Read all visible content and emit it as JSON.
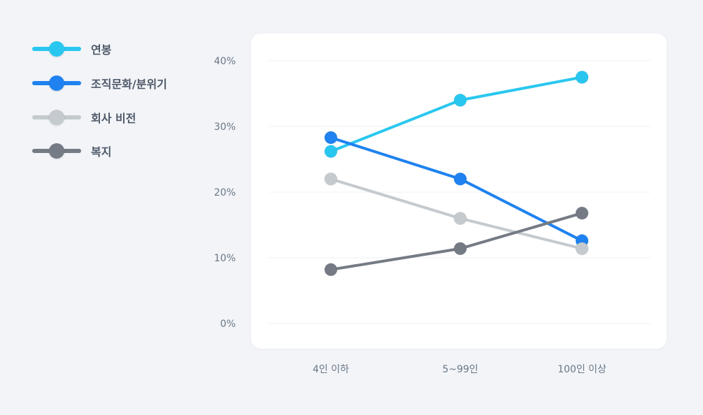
{
  "chart_data": {
    "type": "line",
    "categories": [
      "4인 이하",
      "5~99인",
      "100인 이상"
    ],
    "series": [
      {
        "name": "연봉",
        "color": "#29c7ef",
        "values": [
          26.2,
          34.0,
          37.5
        ]
      },
      {
        "name": "조직문화/분위기",
        "color": "#1f82f0",
        "values": [
          28.3,
          22.0,
          12.6
        ]
      },
      {
        "name": "회사 비전",
        "color": "#c5cacf",
        "values": [
          22.0,
          16.0,
          11.4
        ]
      },
      {
        "name": "복지",
        "color": "#747b84",
        "values": [
          8.2,
          11.4,
          16.8
        ]
      }
    ],
    "y_ticks": [
      "0%",
      "10%",
      "20%",
      "30%",
      "40%"
    ],
    "ylim": [
      0,
      40
    ],
    "grid": true,
    "legend_position": "top-left"
  }
}
